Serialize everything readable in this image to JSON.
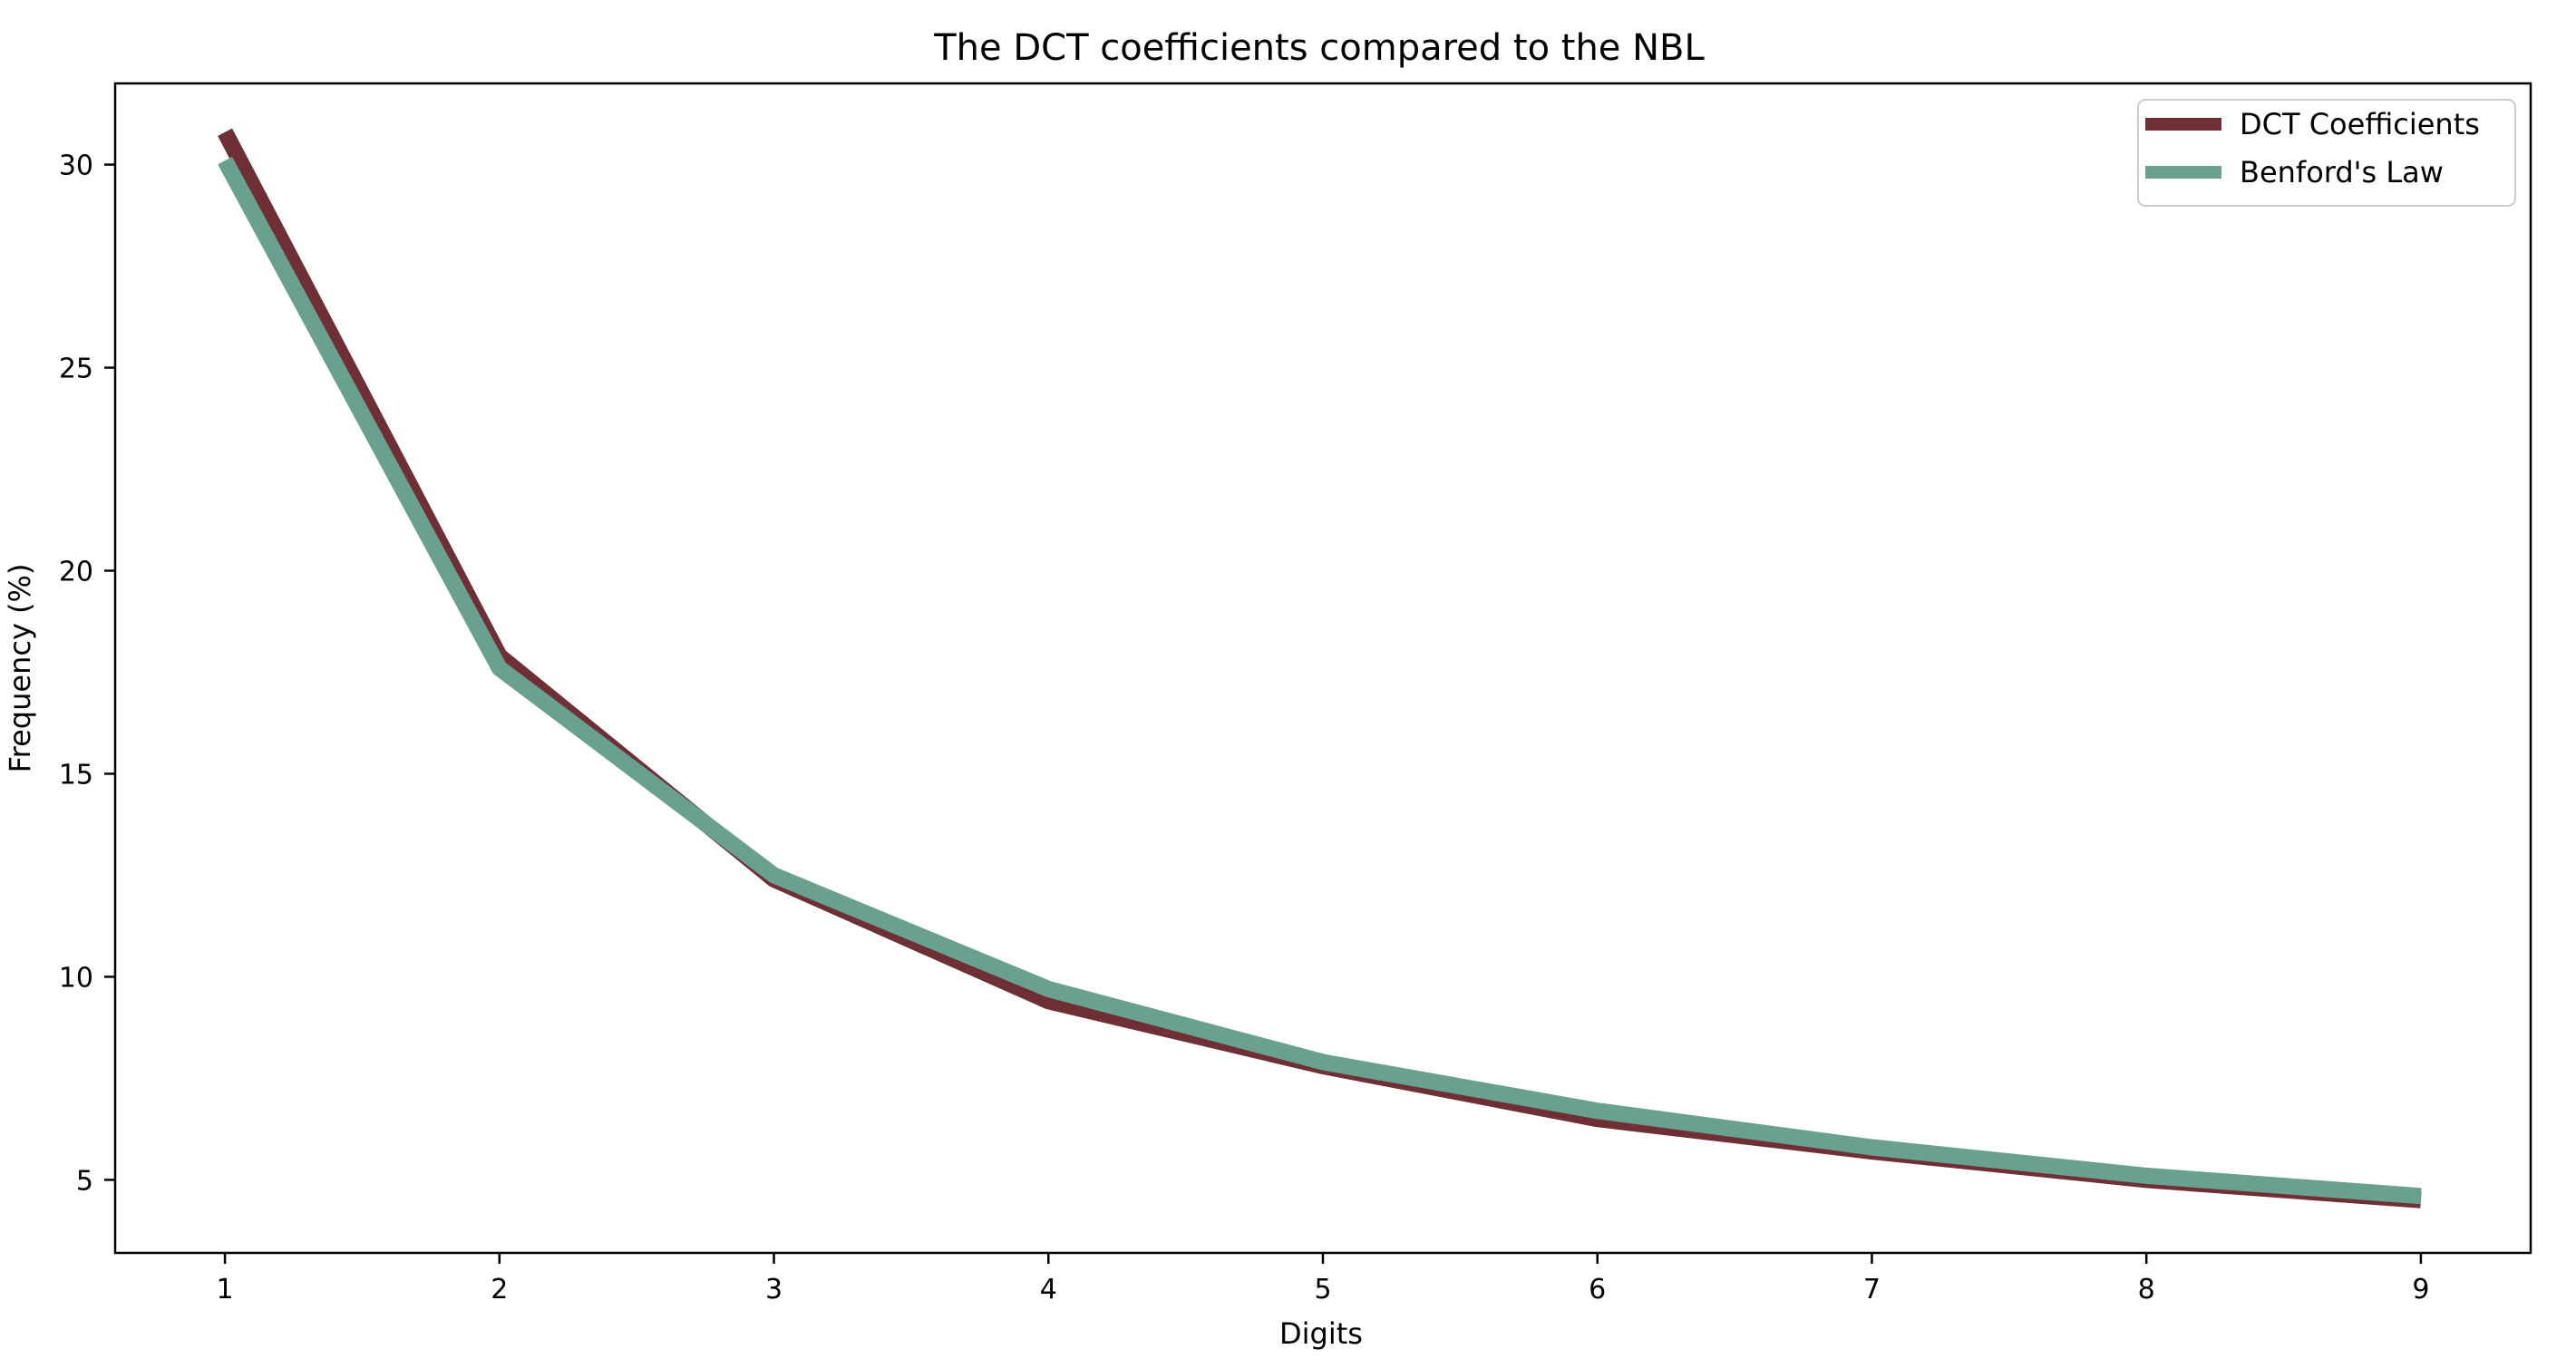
{
  "chart_data": {
    "type": "line",
    "title": "The DCT coefficients compared to the NBL",
    "xlabel": "Digits",
    "ylabel": "Frequency (%)",
    "x": [
      1,
      2,
      3,
      4,
      5,
      6,
      7,
      8,
      9
    ],
    "x_ticks": [
      "1",
      "2",
      "3",
      "4",
      "5",
      "6",
      "7",
      "8",
      "9"
    ],
    "y_ticks": [
      "5",
      "10",
      "15",
      "20",
      "25",
      "30"
    ],
    "xlim": [
      0.6,
      9.4
    ],
    "ylim": [
      3.2,
      32.0
    ],
    "grid": false,
    "legend_position": "top-right",
    "series": [
      {
        "name": "DCT Coefficients",
        "color": "#6e2f35",
        "values": [
          30.8,
          17.9,
          12.4,
          9.4,
          7.8,
          6.5,
          5.7,
          5.0,
          4.5
        ]
      },
      {
        "name": "Benford's Law",
        "color": "#6aa08f",
        "values": [
          30.1,
          17.6,
          12.5,
          9.7,
          7.9,
          6.7,
          5.8,
          5.1,
          4.6
        ]
      }
    ]
  }
}
